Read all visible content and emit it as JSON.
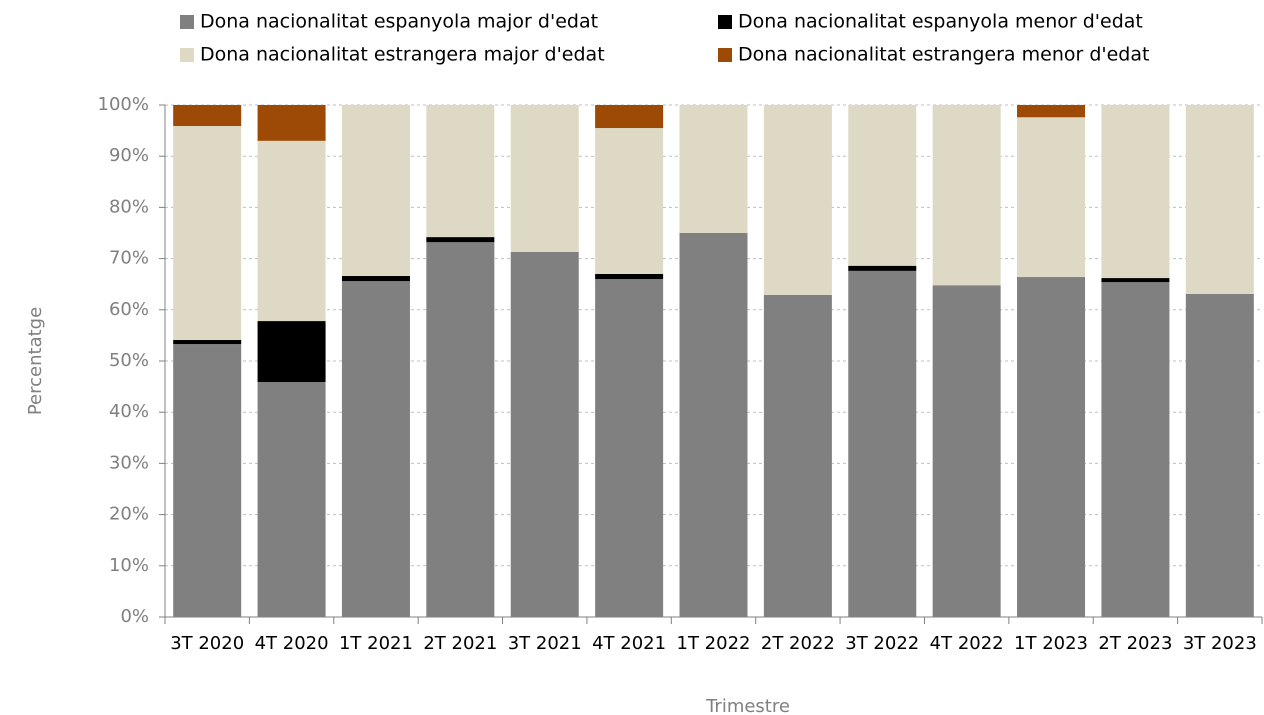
{
  "chart_data": {
    "type": "stacked_bar",
    "xlabel": "Trimestre",
    "ylabel": "Percentatge",
    "categories": [
      "3T 2020",
      "4T 2020",
      "1T 2021",
      "2T 2021",
      "3T 2021",
      "4T 2021",
      "1T 2022",
      "2T 2022",
      "3T 2022",
      "4T 2022",
      "1T 2023",
      "2T 2023",
      "3T 2023"
    ],
    "series": [
      {
        "name": "Dona nacionalitat espanyola major d'edat",
        "color": "#808080",
        "values": [
          53.3,
          45.9,
          65.6,
          73.2,
          71.3,
          66.0,
          75.0,
          62.9,
          67.6,
          64.8,
          66.4,
          65.4,
          63.1
        ]
      },
      {
        "name": "Dona nacionalitat espanyola menor d'edat",
        "color": "#000000",
        "values": [
          0.8,
          11.9,
          1.0,
          1.0,
          0,
          1.0,
          0,
          0,
          1.0,
          0,
          0,
          0.8,
          0
        ]
      },
      {
        "name": "Dona nacionalitat estrangera major d'edat",
        "color": "#ddd9c4",
        "values": [
          41.8,
          35.2,
          33.4,
          25.8,
          28.7,
          28.5,
          25.0,
          37.1,
          31.4,
          35.2,
          31.2,
          33.8,
          36.9
        ]
      },
      {
        "name": "Dona nacionalitat estrangera menor d'edat",
        "color": "#9c4a06",
        "values": [
          4.1,
          7.0,
          0,
          0,
          0,
          4.5,
          0,
          0,
          0,
          0,
          2.4,
          0,
          0
        ]
      }
    ],
    "ylim": [
      0,
      100
    ],
    "yticks": [
      {
        "value": 0,
        "label": "0%"
      },
      {
        "value": 10,
        "label": "10%"
      },
      {
        "value": 20,
        "label": "20%"
      },
      {
        "value": 30,
        "label": "30%"
      },
      {
        "value": 40,
        "label": "40%"
      },
      {
        "value": 50,
        "label": "50%"
      },
      {
        "value": 60,
        "label": "60%"
      },
      {
        "value": 70,
        "label": "70%"
      },
      {
        "value": 80,
        "label": "80%"
      },
      {
        "value": 90,
        "label": "90%"
      },
      {
        "value": 100,
        "label": "100%"
      }
    ],
    "grid": true,
    "legend": "top"
  }
}
